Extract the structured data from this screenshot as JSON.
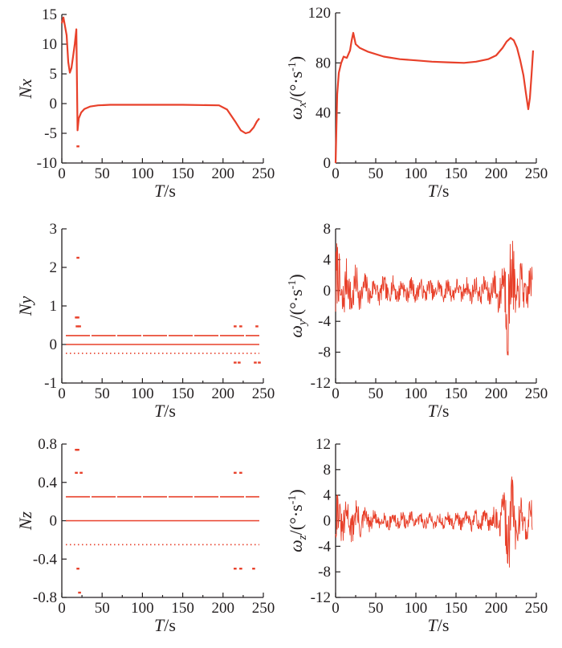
{
  "colors": {
    "series": "#e8402a",
    "axis": "#231f20"
  },
  "chart_data": [
    {
      "id": "nx",
      "type": "line",
      "xlabel_italic": "T",
      "xlabel_unit": "/s",
      "ylabel": "Nx",
      "ylabel_sub": "",
      "ylabel_unit": "",
      "xlim": [
        0,
        250
      ],
      "ylim": [
        -10,
        15
      ],
      "xticks": [
        "0",
        "50",
        "100",
        "150",
        "200",
        "250"
      ],
      "yticks": [
        "-10",
        "-5",
        "0",
        "5",
        "10",
        "15"
      ],
      "series": [
        {
          "style": "line",
          "points": [
            [
              0,
              13.5
            ],
            [
              2,
              14.5
            ],
            [
              4,
              13
            ],
            [
              6,
              11.5
            ],
            [
              8,
              7
            ],
            [
              10,
              5.2
            ],
            [
              12,
              6
            ],
            [
              14,
              8
            ],
            [
              16,
              10
            ],
            [
              18,
              12.5
            ],
            [
              19,
              1
            ],
            [
              19.5,
              -4.5
            ],
            [
              21,
              -2.5
            ],
            [
              24,
              -1.5
            ],
            [
              28,
              -0.9
            ],
            [
              35,
              -0.5
            ],
            [
              45,
              -0.3
            ],
            [
              60,
              -0.2
            ],
            [
              100,
              -0.2
            ],
            [
              150,
              -0.2
            ],
            [
              195,
              -0.3
            ],
            [
              205,
              -1
            ],
            [
              215,
              -3
            ],
            [
              222,
              -4.5
            ],
            [
              228,
              -5
            ],
            [
              233,
              -4.8
            ],
            [
              238,
              -4
            ],
            [
              242,
              -3
            ],
            [
              245,
              -2.5
            ]
          ]
        },
        {
          "style": "dots",
          "points": [
            [
              20,
              -7.2
            ]
          ]
        }
      ]
    },
    {
      "id": "wx",
      "type": "line",
      "xlabel_italic": "T",
      "xlabel_unit": "/s",
      "ylabel": "ω",
      "ylabel_sub": "x",
      "ylabel_unit": "/(°·s-1)",
      "xlim": [
        0,
        250
      ],
      "ylim": [
        0,
        120
      ],
      "xticks": [
        "0",
        "50",
        "100",
        "150",
        "200",
        "250"
      ],
      "yticks": [
        "0",
        "40",
        "80",
        "120"
      ],
      "series": [
        {
          "style": "line",
          "points": [
            [
              0,
              0
            ],
            [
              2,
              55
            ],
            [
              4,
              72
            ],
            [
              7,
              80
            ],
            [
              10,
              85
            ],
            [
              14,
              84
            ],
            [
              18,
              90
            ],
            [
              20,
              98
            ],
            [
              22,
              104
            ],
            [
              25,
              95
            ],
            [
              30,
              92
            ],
            [
              40,
              89
            ],
            [
              60,
              85
            ],
            [
              80,
              83
            ],
            [
              100,
              82
            ],
            [
              120,
              81
            ],
            [
              140,
              80.5
            ],
            [
              160,
              80
            ],
            [
              175,
              81
            ],
            [
              190,
              83
            ],
            [
              200,
              86
            ],
            [
              208,
              92
            ],
            [
              213,
              97
            ],
            [
              218,
              100
            ],
            [
              222,
              98
            ],
            [
              226,
              92
            ],
            [
              230,
              82
            ],
            [
              234,
              70
            ],
            [
              237,
              56
            ],
            [
              240,
              43
            ],
            [
              242,
              52
            ],
            [
              244,
              70
            ],
            [
              246,
              90
            ]
          ]
        }
      ]
    },
    {
      "id": "ny",
      "type": "scatter",
      "xlabel_italic": "T",
      "xlabel_unit": "/s",
      "ylabel": "Ny",
      "ylabel_sub": "",
      "ylabel_unit": "",
      "xlim": [
        0,
        250
      ],
      "ylim": [
        -1,
        3
      ],
      "xticks": [
        "0",
        "50",
        "100",
        "150",
        "200",
        "250"
      ],
      "yticks": [
        "-1",
        "0",
        "1",
        "2",
        "3"
      ],
      "series": [
        {
          "style": "hlines",
          "points": [
            [
              5,
              245,
              0
            ],
            [
              5,
              245,
              0.23
            ],
            [
              5,
              245,
              -0.23
            ]
          ]
        },
        {
          "style": "dots",
          "points": [
            [
              20,
              2.25
            ],
            [
              18,
              0.7
            ],
            [
              20,
              0.7
            ],
            [
              19,
              0.47
            ],
            [
              22,
              0.47
            ],
            [
              215,
              0.47
            ],
            [
              222,
              0.47
            ],
            [
              242,
              0.47
            ],
            [
              215,
              -0.47
            ],
            [
              220,
              -0.47
            ],
            [
              240,
              -0.47
            ],
            [
              245,
              -0.47
            ]
          ]
        }
      ]
    },
    {
      "id": "wy",
      "type": "line",
      "xlabel_italic": "T",
      "xlabel_unit": "/s",
      "ylabel": "ω",
      "ylabel_sub": "y",
      "ylabel_unit": "/(°·s-1)",
      "xlim": [
        0,
        250
      ],
      "ylim": [
        -12,
        8
      ],
      "xticks": [
        "0",
        "50",
        "100",
        "150",
        "200",
        "250"
      ],
      "yticks": [
        "-12",
        "-8",
        "-4",
        "0",
        "4",
        "8"
      ],
      "series": [
        {
          "style": "noise",
          "seed": 7,
          "base": 0,
          "step": 0.5,
          "envelope": [
            [
              0,
              7
            ],
            [
              5,
              4.5
            ],
            [
              15,
              3.5
            ],
            [
              25,
              3
            ],
            [
              35,
              2
            ],
            [
              50,
              1.8
            ],
            [
              100,
              1.4
            ],
            [
              150,
              1.4
            ],
            [
              190,
              1.8
            ],
            [
              205,
              3
            ],
            [
              212,
              6
            ],
            [
              216,
              9
            ],
            [
              220,
              6
            ],
            [
              230,
              3.5
            ],
            [
              245,
              3
            ]
          ]
        }
      ]
    },
    {
      "id": "nz",
      "type": "scatter",
      "xlabel_italic": "T",
      "xlabel_unit": "/s",
      "ylabel": "Nz",
      "ylabel_sub": "",
      "ylabel_unit": "",
      "xlim": [
        0,
        250
      ],
      "ylim": [
        -0.8,
        0.8
      ],
      "xticks": [
        "0",
        "50",
        "100",
        "150",
        "200",
        "250"
      ],
      "yticks": [
        "-0.8",
        "-0.4",
        "0",
        "0.4",
        "0.8"
      ],
      "series": [
        {
          "style": "hlines",
          "points": [
            [
              5,
              245,
              0
            ],
            [
              5,
              245,
              0.25
            ],
            [
              5,
              245,
              -0.25
            ]
          ]
        },
        {
          "style": "dots",
          "points": [
            [
              18,
              0.74
            ],
            [
              20,
              0.74
            ],
            [
              18,
              0.5
            ],
            [
              24,
              0.5
            ],
            [
              215,
              0.5
            ],
            [
              222,
              0.5
            ],
            [
              20,
              -0.5
            ],
            [
              22,
              -0.75
            ],
            [
              215,
              -0.5
            ],
            [
              222,
              -0.5
            ],
            [
              238,
              -0.5
            ]
          ]
        }
      ]
    },
    {
      "id": "wz",
      "type": "line",
      "xlabel_italic": "T",
      "xlabel_unit": "/s",
      "ylabel": "ω",
      "ylabel_sub": "z",
      "ylabel_unit": "/(°·s-1)",
      "xlim": [
        0,
        250
      ],
      "ylim": [
        -12,
        12
      ],
      "xticks": [
        "0",
        "50",
        "100",
        "150",
        "200",
        "250"
      ],
      "yticks": [
        "-12",
        "-8",
        "-4",
        "0",
        "4",
        "8",
        "12"
      ],
      "series": [
        {
          "style": "noise",
          "seed": 31,
          "base": 0,
          "step": 0.5,
          "envelope": [
            [
              0,
              5.5
            ],
            [
              5,
              3.5
            ],
            [
              15,
              3
            ],
            [
              25,
              3.5
            ],
            [
              35,
              2
            ],
            [
              50,
              1.5
            ],
            [
              100,
              1.2
            ],
            [
              150,
              1.3
            ],
            [
              190,
              1.8
            ],
            [
              205,
              3
            ],
            [
              212,
              6
            ],
            [
              216,
              9
            ],
            [
              220,
              6
            ],
            [
              230,
              3.5
            ],
            [
              245,
              3
            ]
          ]
        }
      ]
    }
  ]
}
